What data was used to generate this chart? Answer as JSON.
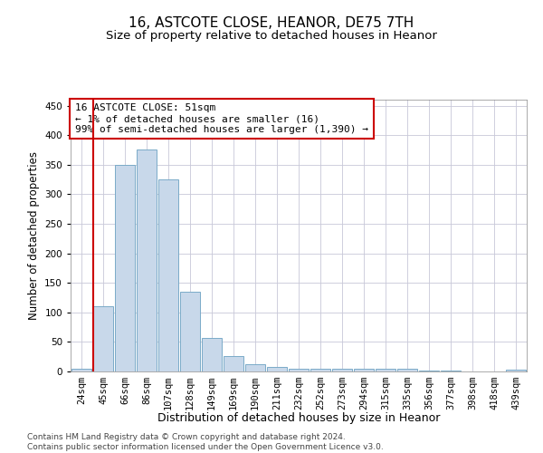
{
  "title": "16, ASTCOTE CLOSE, HEANOR, DE75 7TH",
  "subtitle": "Size of property relative to detached houses in Heanor",
  "xlabel": "Distribution of detached houses by size in Heanor",
  "ylabel": "Number of detached properties",
  "categories": [
    "24sqm",
    "45sqm",
    "66sqm",
    "86sqm",
    "107sqm",
    "128sqm",
    "149sqm",
    "169sqm",
    "190sqm",
    "211sqm",
    "232sqm",
    "252sqm",
    "273sqm",
    "294sqm",
    "315sqm",
    "335sqm",
    "356sqm",
    "377sqm",
    "398sqm",
    "418sqm",
    "439sqm"
  ],
  "values": [
    5,
    110,
    350,
    375,
    325,
    135,
    57,
    26,
    12,
    7,
    5,
    5,
    5,
    5,
    5,
    4,
    2,
    2,
    0,
    0,
    3
  ],
  "bar_color": "#c8d8ea",
  "bar_edge_color": "#7aaac8",
  "annotation_text": "16 ASTCOTE CLOSE: 51sqm\n← 1% of detached houses are smaller (16)\n99% of semi-detached houses are larger (1,390) →",
  "annotation_box_color": "#ffffff",
  "annotation_box_edge_color": "#cc0000",
  "red_line_color": "#cc0000",
  "ylim": [
    0,
    460
  ],
  "yticks": [
    0,
    50,
    100,
    150,
    200,
    250,
    300,
    350,
    400,
    450
  ],
  "footer": "Contains HM Land Registry data © Crown copyright and database right 2024.\nContains public sector information licensed under the Open Government Licence v3.0.",
  "bg_color": "#ffffff",
  "grid_color": "#c8c8d8",
  "title_fontsize": 11,
  "subtitle_fontsize": 9.5,
  "xlabel_fontsize": 9,
  "ylabel_fontsize": 8.5,
  "tick_fontsize": 7.5,
  "annotation_fontsize": 8,
  "footer_fontsize": 6.5
}
